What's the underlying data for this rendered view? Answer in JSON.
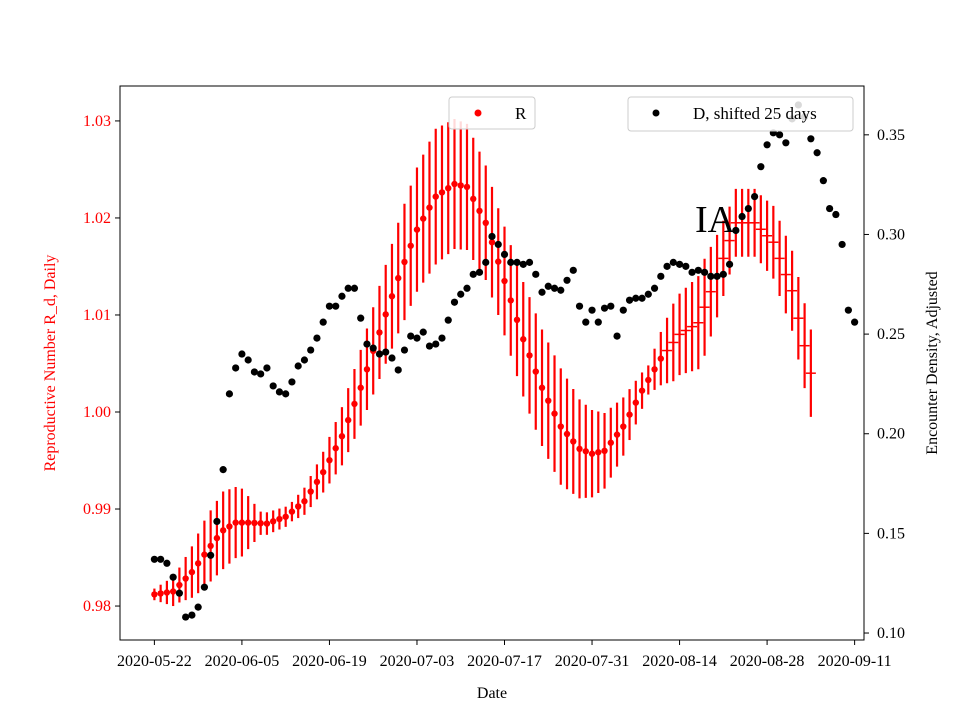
{
  "chart_data": {
    "type": "scatter",
    "annotation": "IA",
    "xlabel": "Date",
    "x_tick_labels": [
      "2020-05-22",
      "2020-06-05",
      "2020-06-19",
      "2020-07-03",
      "2020-07-17",
      "2020-07-31",
      "2020-08-14",
      "2020-08-28",
      "2020-09-11"
    ],
    "x_start_date": "2020-05-22",
    "x_range_days": [
      -5.5,
      113.5
    ],
    "left_axis": {
      "label": "Reproductive Number R_d, Daily",
      "color": "#ff0000",
      "ylim": [
        0.9765,
        1.0336
      ],
      "ticks": [
        0.98,
        0.99,
        1.0,
        1.01,
        1.02,
        1.03
      ],
      "tick_labels": [
        "0.98",
        "0.99",
        "1.00",
        "1.01",
        "1.02",
        "1.03"
      ]
    },
    "right_axis": {
      "label": "Encounter Density, Adjusted",
      "color": "#000000",
      "ylim": [
        0.0965,
        0.3745
      ],
      "ticks": [
        0.1,
        0.15,
        0.2,
        0.25,
        0.3,
        0.35
      ],
      "tick_labels": [
        "0.10",
        "0.15",
        "0.20",
        "0.25",
        "0.30",
        "0.35"
      ]
    },
    "legend": [
      {
        "label": "R",
        "color": "#ff0000",
        "position": "top-center"
      },
      {
        "label": "D, shifted 25 days",
        "color": "#000000",
        "position": "top-right"
      }
    ],
    "series": [
      {
        "name": "R",
        "axis": "left",
        "color": "#ff0000",
        "style": "points-with-error-bars",
        "r_anchors": [
          [
            0,
            0.9812
          ],
          [
            3,
            0.9815
          ],
          [
            6,
            0.9835
          ],
          [
            9,
            0.9862
          ],
          [
            11,
            0.9878
          ],
          [
            13,
            0.9886
          ],
          [
            15,
            0.9886
          ],
          [
            18,
            0.9885
          ],
          [
            21,
            0.9892
          ],
          [
            24,
            0.9908
          ],
          [
            27,
            0.9938
          ],
          [
            30,
            0.9975
          ],
          [
            33,
            1.0025
          ],
          [
            36,
            1.0082
          ],
          [
            39,
            1.0138
          ],
          [
            42,
            1.0188
          ],
          [
            45,
            1.0222
          ],
          [
            48,
            1.0235
          ],
          [
            50,
            1.0232
          ],
          [
            53,
            1.0195
          ],
          [
            56,
            1.0135
          ],
          [
            59,
            1.0075
          ],
          [
            62,
            1.0025
          ],
          [
            65,
            0.9985
          ],
          [
            68,
            0.9962
          ],
          [
            70,
            0.9957
          ],
          [
            72,
            0.996
          ],
          [
            75,
            0.9985
          ],
          [
            78,
            1.0022
          ],
          [
            81,
            1.0055
          ],
          [
            84,
            1.008
          ],
          [
            87,
            1.0092
          ],
          [
            90,
            1.014
          ],
          [
            93,
            1.0195
          ],
          [
            96,
            1.0195
          ],
          [
            99,
            1.0175
          ],
          [
            102,
            1.0125
          ],
          [
            105,
            1.004
          ]
        ],
        "err_anchors": [
          [
            0,
            0.0006
          ],
          [
            4,
            0.0018
          ],
          [
            8,
            0.0035
          ],
          [
            11,
            0.004
          ],
          [
            14,
            0.0035
          ],
          [
            17,
            0.0012
          ],
          [
            22,
            0.001
          ],
          [
            26,
            0.0018
          ],
          [
            30,
            0.003
          ],
          [
            35,
            0.0045
          ],
          [
            40,
            0.006
          ],
          [
            45,
            0.007
          ],
          [
            50,
            0.0065
          ],
          [
            55,
            0.0055
          ],
          [
            60,
            0.006
          ],
          [
            65,
            0.006
          ],
          [
            70,
            0.0045
          ],
          [
            75,
            0.003
          ],
          [
            79,
            0.0015
          ],
          [
            83,
            0.004
          ],
          [
            88,
            0.005
          ],
          [
            92,
            0.0035
          ],
          [
            97,
            0.0035
          ],
          [
            101,
            0.004
          ],
          [
            105,
            0.0045
          ]
        ],
        "points_until_day": 81,
        "first_day": 0,
        "last_day": 105
      },
      {
        "name": "D, shifted 25 days",
        "axis": "right",
        "color": "#000000",
        "style": "points",
        "points": [
          [
            0,
            0.137
          ],
          [
            1,
            0.137
          ],
          [
            2,
            0.135
          ],
          [
            3,
            0.128
          ],
          [
            4,
            0.12
          ],
          [
            5,
            0.108
          ],
          [
            6,
            0.109
          ],
          [
            7,
            0.113
          ],
          [
            8,
            0.123
          ],
          [
            9,
            0.139
          ],
          [
            10,
            0.156
          ],
          [
            11,
            0.182
          ],
          [
            12,
            0.22
          ],
          [
            13,
            0.233
          ],
          [
            14,
            0.24
          ],
          [
            15,
            0.237
          ],
          [
            16,
            0.231
          ],
          [
            17,
            0.23
          ],
          [
            18,
            0.233
          ],
          [
            19,
            0.224
          ],
          [
            20,
            0.221
          ],
          [
            21,
            0.22
          ],
          [
            22,
            0.226
          ],
          [
            23,
            0.234
          ],
          [
            24,
            0.237
          ],
          [
            25,
            0.242
          ],
          [
            26,
            0.248
          ],
          [
            27,
            0.256
          ],
          [
            28,
            0.264
          ],
          [
            29,
            0.264
          ],
          [
            30,
            0.269
          ],
          [
            31,
            0.273
          ],
          [
            32,
            0.273
          ],
          [
            33,
            0.258
          ],
          [
            34,
            0.245
          ],
          [
            35,
            0.243
          ],
          [
            36,
            0.24
          ],
          [
            37,
            0.241
          ],
          [
            38,
            0.238
          ],
          [
            39,
            0.232
          ],
          [
            40,
            0.242
          ],
          [
            41,
            0.249
          ],
          [
            42,
            0.248
          ],
          [
            43,
            0.251
          ],
          [
            44,
            0.244
          ],
          [
            45,
            0.245
          ],
          [
            46,
            0.248
          ],
          [
            47,
            0.257
          ],
          [
            48,
            0.266
          ],
          [
            49,
            0.27
          ],
          [
            50,
            0.273
          ],
          [
            51,
            0.28
          ],
          [
            52,
            0.281
          ],
          [
            53,
            0.286
          ],
          [
            54,
            0.299
          ],
          [
            55,
            0.295
          ],
          [
            56,
            0.29
          ],
          [
            57,
            0.286
          ],
          [
            58,
            0.286
          ],
          [
            59,
            0.285
          ],
          [
            60,
            0.286
          ],
          [
            61,
            0.28
          ],
          [
            62,
            0.271
          ],
          [
            63,
            0.274
          ],
          [
            64,
            0.273
          ],
          [
            65,
            0.272
          ],
          [
            66,
            0.277
          ],
          [
            67,
            0.282
          ],
          [
            68,
            0.264
          ],
          [
            69,
            0.256
          ],
          [
            70,
            0.262
          ],
          [
            71,
            0.256
          ],
          [
            72,
            0.263
          ],
          [
            73,
            0.264
          ],
          [
            74,
            0.249
          ],
          [
            75,
            0.262
          ],
          [
            76,
            0.267
          ],
          [
            77,
            0.268
          ],
          [
            78,
            0.268
          ],
          [
            79,
            0.27
          ],
          [
            80,
            0.273
          ],
          [
            81,
            0.279
          ],
          [
            82,
            0.284
          ],
          [
            83,
            0.286
          ],
          [
            84,
            0.285
          ],
          [
            85,
            0.284
          ],
          [
            86,
            0.281
          ],
          [
            87,
            0.282
          ],
          [
            88,
            0.281
          ],
          [
            89,
            0.279
          ],
          [
            90,
            0.279
          ],
          [
            91,
            0.28
          ],
          [
            92,
            0.285
          ],
          [
            93,
            0.302
          ],
          [
            94,
            0.309
          ],
          [
            95,
            0.313
          ],
          [
            96,
            0.319
          ],
          [
            97,
            0.334
          ],
          [
            98,
            0.345
          ],
          [
            99,
            0.351
          ],
          [
            100,
            0.35
          ],
          [
            101,
            0.346
          ],
          [
            102,
            0.358
          ],
          [
            103,
            0.365
          ],
          [
            104,
            0.359
          ],
          [
            105,
            0.348
          ],
          [
            106,
            0.341
          ],
          [
            107,
            0.327
          ],
          [
            108,
            0.313
          ],
          [
            109,
            0.31
          ],
          [
            110,
            0.295
          ],
          [
            111,
            0.262
          ],
          [
            112,
            0.256
          ]
        ]
      }
    ]
  }
}
